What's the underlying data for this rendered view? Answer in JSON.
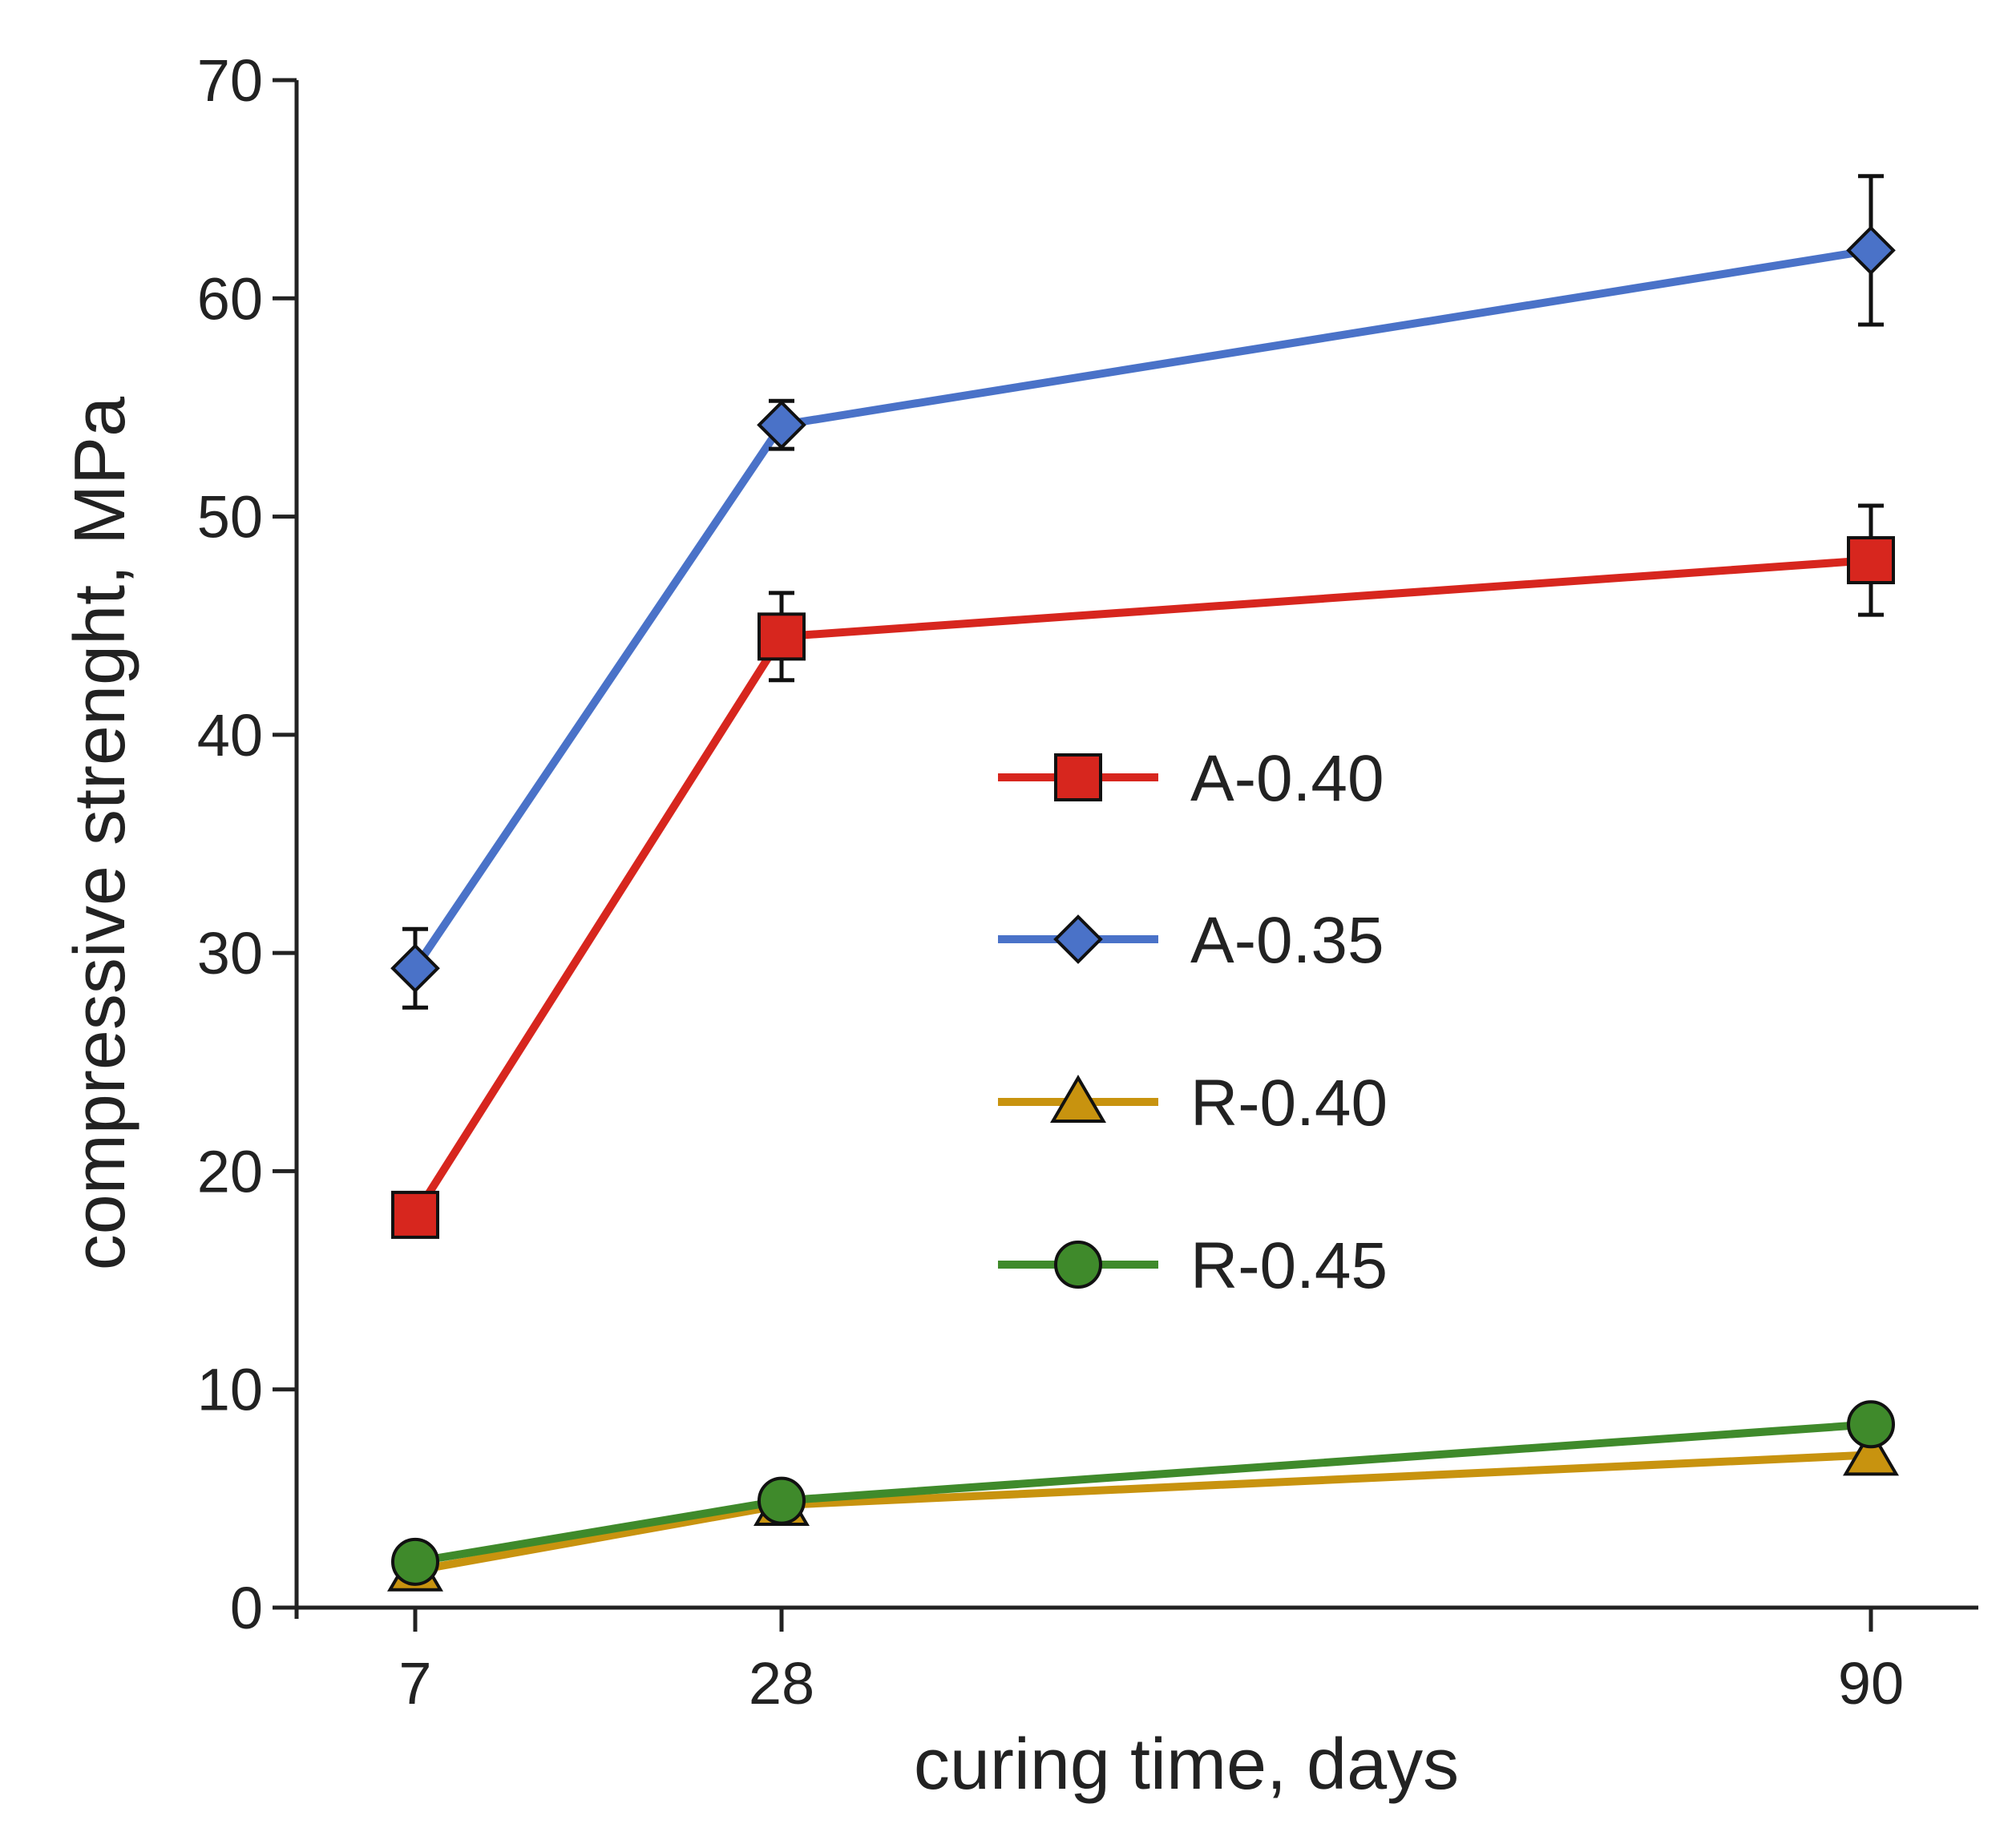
{
  "chart_data": {
    "type": "line",
    "title": "",
    "xlabel": "curing time, days",
    "ylabel": "compressive strenght, MPa",
    "x": [
      7,
      28,
      90
    ],
    "x_tick_labels": [
      "7",
      "28",
      "90"
    ],
    "y_ticks": [
      0,
      10,
      20,
      30,
      40,
      50,
      60,
      70
    ],
    "y_tick_labels": [
      "0",
      "10",
      "20",
      "30",
      "40",
      "50",
      "60",
      "70"
    ],
    "ylim": [
      0,
      70
    ],
    "grid": false,
    "legend_position": "center",
    "series": [
      {
        "name": "A-0.40",
        "color": "#d7261e",
        "marker": "square",
        "marker_color": "#d7261e",
        "values": [
          18.0,
          44.5,
          48.0
        ],
        "errors": [
          0,
          2.0,
          2.5
        ]
      },
      {
        "name": "A-0.35",
        "color": "#4a72c8",
        "marker": "diamond",
        "marker_color": "#4a72c8",
        "values": [
          29.3,
          54.2,
          62.2
        ],
        "errors": [
          1.8,
          1.1,
          3.4
        ]
      },
      {
        "name": "R-0.40",
        "color": "#c8930f",
        "marker": "triangle",
        "marker_color": "#c8930f",
        "values": [
          1.7,
          4.7,
          7.0
        ],
        "errors": [
          0,
          0,
          0
        ]
      },
      {
        "name": "R-0.45",
        "color": "#3f8a2b",
        "marker": "circle",
        "marker_color": "#3f8a2b",
        "values": [
          2.1,
          4.9,
          8.4
        ],
        "errors": [
          0,
          0,
          0
        ]
      }
    ]
  }
}
